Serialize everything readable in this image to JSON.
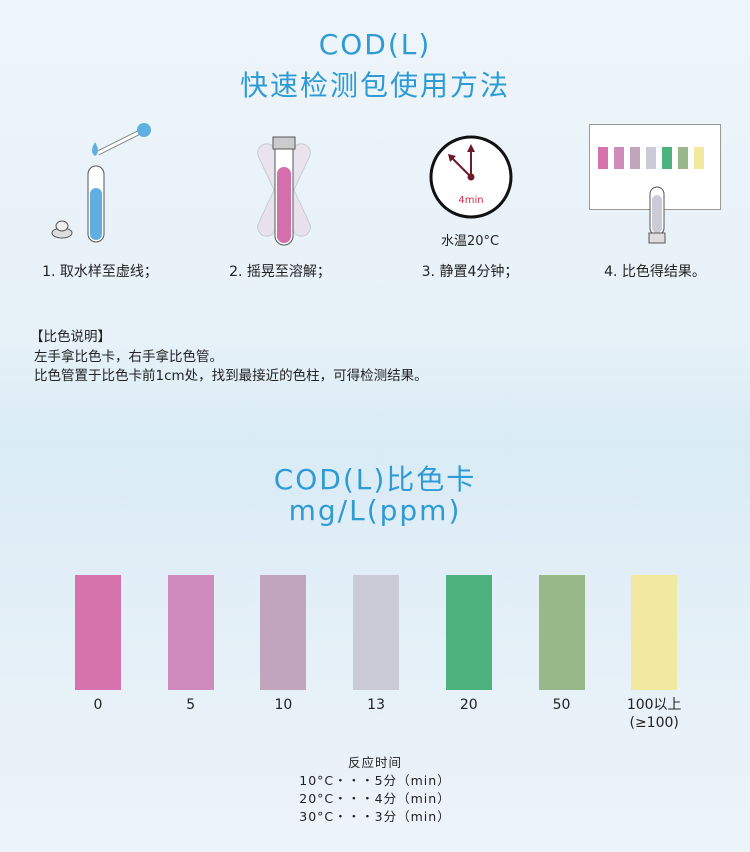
{
  "header": {
    "line1": "COD(L)",
    "line2": "快速检测包使用方法"
  },
  "steps": [
    {
      "label": "1. 取水样至虚线；"
    },
    {
      "label": "2. 摇晃至溶解；"
    },
    {
      "label": "3. 静置4分钟；",
      "clock_text": "4min",
      "temp": "水温20°C"
    },
    {
      "label": "4. 比色得结果。"
    }
  ],
  "note": {
    "heading": "【比色说明】",
    "line1": "左手拿比色卡，右手拿比色管。",
    "line2": "比色管置于比色卡前1cm处，找到最接近的色柱，可得检测结果。"
  },
  "card": {
    "title": "COD(L)比色卡",
    "unit": "mg/L(ppm)"
  },
  "scale": [
    {
      "value": "0",
      "color": "#d672ac"
    },
    {
      "value": "5",
      "color": "#d08bbd"
    },
    {
      "value": "10",
      "color": "#c1a5bd"
    },
    {
      "value": "13",
      "color": "#cbcbd7"
    },
    {
      "value": "20",
      "color": "#4cb37f"
    },
    {
      "value": "50",
      "color": "#98b889"
    },
    {
      "value": "100以上",
      "value2": "(≥100)",
      "color": "#f2e9a0"
    }
  ],
  "reaction": {
    "title": "反应时间",
    "rows": [
      "10°C・・・5分（min）",
      "20°C・・・4分（min）",
      "30°C・・・3分（min）"
    ]
  }
}
